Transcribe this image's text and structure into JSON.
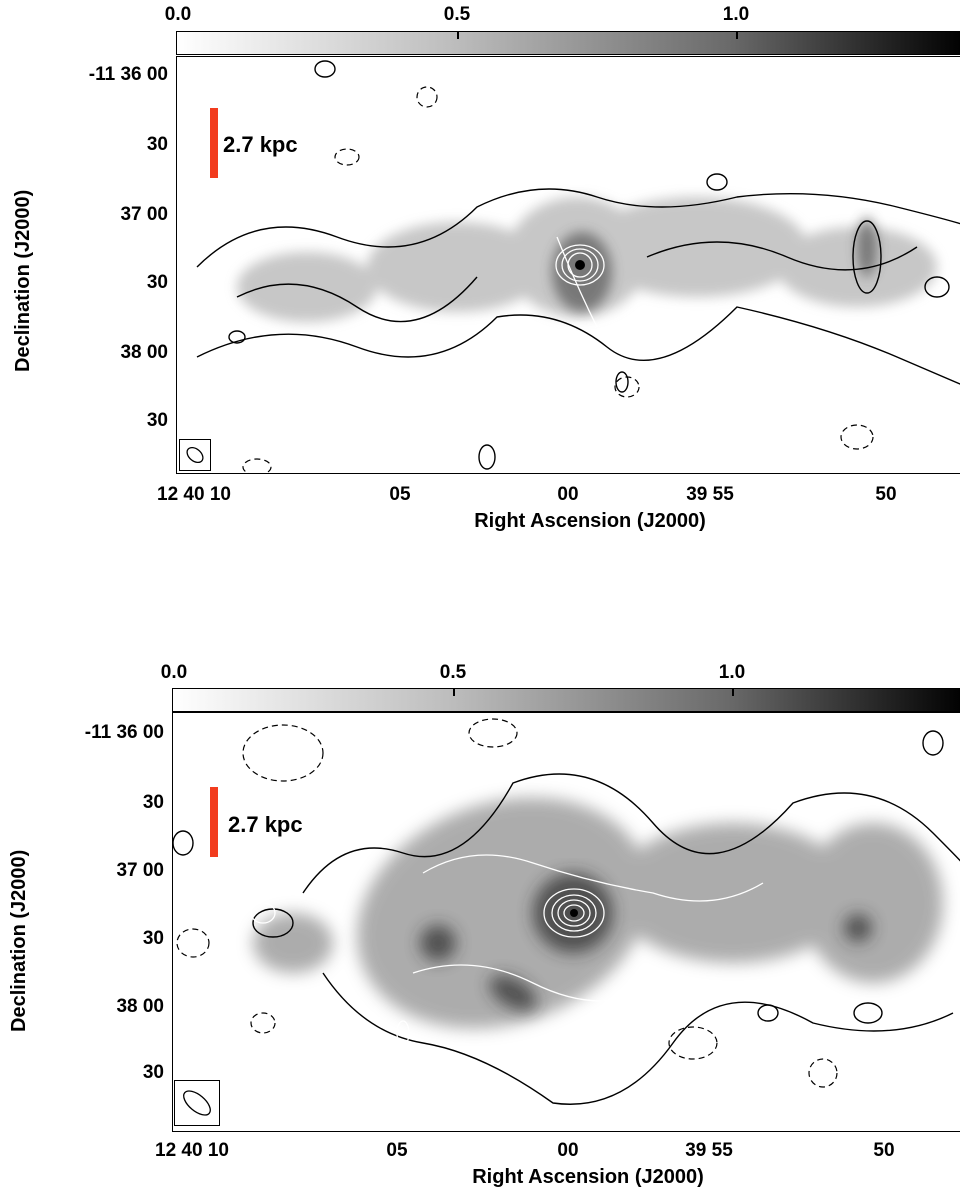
{
  "panels": [
    {
      "colorbar": {
        "ticks": [
          "0.0",
          "0.5",
          "1.0"
        ]
      },
      "dec_ticks": [
        "-11 36 00",
        "30",
        "37 00",
        "30",
        "38 00",
        "30"
      ],
      "ra_ticks": [
        "12 40 10",
        "05",
        "00",
        "39 55",
        "50"
      ],
      "xlabel": "Right Ascension (J2000)",
      "ylabel": "Declination (J2000)",
      "scalebar_label": "2.7 kpc",
      "scalebar_color": "#f23c1e"
    },
    {
      "colorbar": {
        "ticks": [
          "0.0",
          "0.5",
          "1.0"
        ]
      },
      "dec_ticks": [
        "-11 36 00",
        "30",
        "37 00",
        "30",
        "38 00",
        "30"
      ],
      "ra_ticks": [
        "12 40 10",
        "05",
        "00",
        "39 55",
        "50"
      ],
      "xlabel": "Right Ascension (J2000)",
      "ylabel": "Declination (J2000)",
      "scalebar_label": "2.7 kpc",
      "scalebar_color": "#f23c1e"
    }
  ]
}
